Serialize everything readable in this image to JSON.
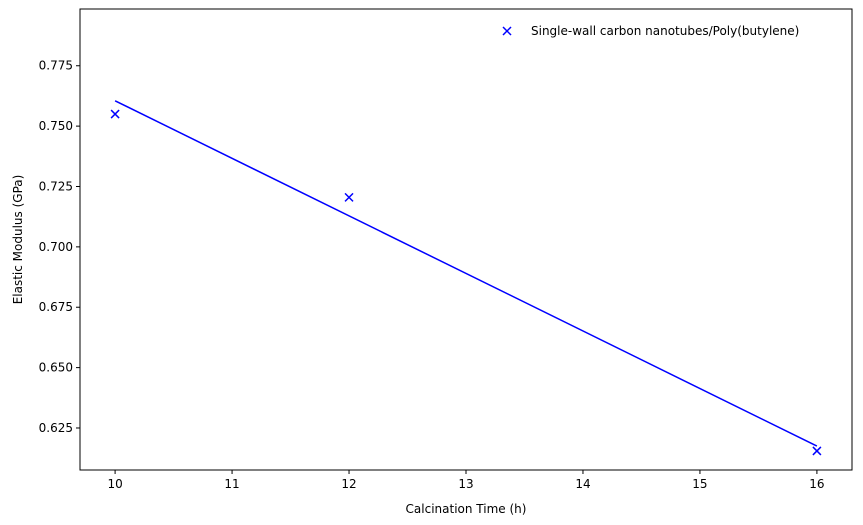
{
  "chart_data": {
    "type": "scatter",
    "title": "",
    "xlabel": "Calcination Time (h)",
    "ylabel": "Elastic Modulus (GPa)",
    "xlim": [
      9.7,
      16.3
    ],
    "ylim": [
      0.6076,
      0.7985
    ],
    "x_ticks": [
      10,
      11,
      12,
      13,
      14,
      15,
      16
    ],
    "x_tick_labels": [
      "10",
      "11",
      "12",
      "13",
      "14",
      "15",
      "16"
    ],
    "y_ticks": [
      0.625,
      0.65,
      0.675,
      0.7,
      0.725,
      0.75,
      0.775
    ],
    "y_tick_labels": [
      "0.625",
      "0.650",
      "0.675",
      "0.700",
      "0.725",
      "0.750",
      "0.775"
    ],
    "grid": false,
    "legend_position": "top-right",
    "series": [
      {
        "name": "Single-wall carbon nanotubes/Poly(butylene)",
        "marker": "x",
        "color": "#0000ff",
        "x": [
          10,
          12,
          16
        ],
        "y": [
          0.755,
          0.7205,
          0.6155
        ]
      }
    ],
    "trendline": {
      "color": "#0000ff",
      "x": [
        10,
        16
      ],
      "y": [
        0.7605,
        0.6175
      ]
    }
  }
}
